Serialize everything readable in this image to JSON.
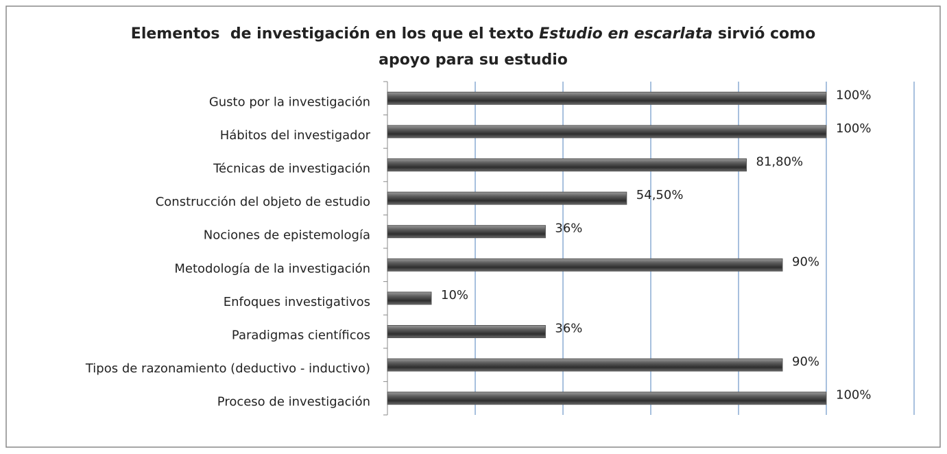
{
  "chart_data": {
    "type": "hbar",
    "title": {
      "line1": [
        "Elementos  de investigación en los que el texto ",
        "Estudio en escarlata",
        " sirvió como"
      ],
      "line2": "apoyo para su estudio"
    },
    "categories": [
      "Gusto por la investigación",
      "Hábitos del investigador",
      "Técnicas de investigación",
      "Construcción del objeto de estudio",
      "Nociones de epistemología",
      "Metodología de la investigación",
      "Enfoques investigativos",
      "Paradigmas científicos",
      "Tipos de razonamiento (deductivo - inductivo)",
      "Proceso de  investigación"
    ],
    "values": [
      100,
      100,
      81.8,
      54.5,
      36,
      90,
      10,
      36,
      90,
      100
    ],
    "value_labels": [
      "100%",
      "100%",
      "81,80%",
      "54,50%",
      "36%",
      "90%",
      "10%",
      "36%",
      "90%",
      "100%"
    ],
    "color": "#555555",
    "xlim": [
      0,
      120
    ],
    "xticks": [
      0,
      20,
      40,
      60,
      80,
      100,
      120
    ],
    "grid": true
  }
}
